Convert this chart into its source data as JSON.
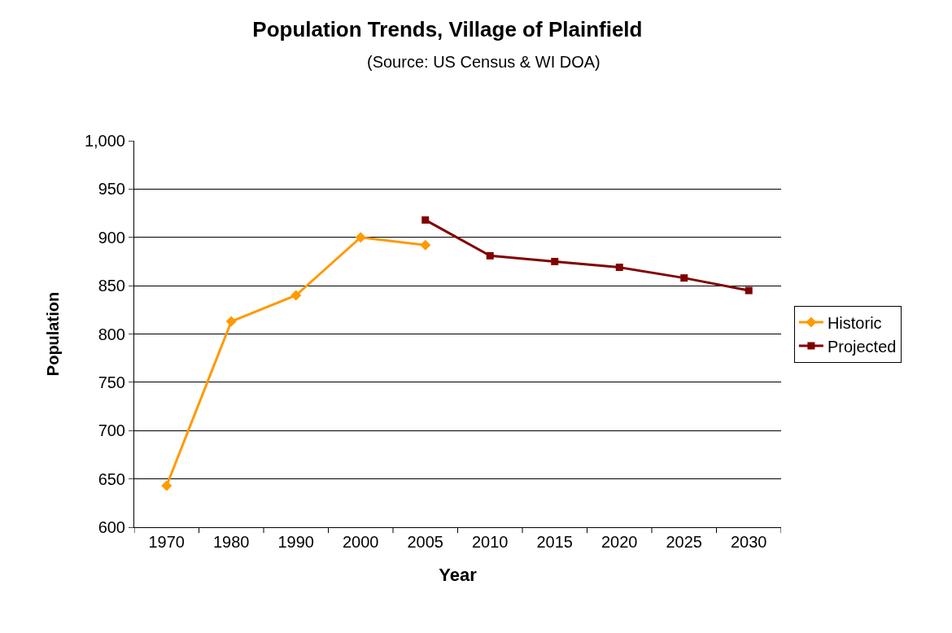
{
  "chart_data": {
    "type": "line",
    "title": "Population Trends, Village of Plainfield",
    "subtitle": "(Source: US Census & WI DOA)",
    "xlabel": "Year",
    "ylabel": "Population",
    "categories": [
      "1970",
      "1980",
      "1990",
      "2000",
      "2005",
      "2010",
      "2015",
      "2020",
      "2025",
      "2030"
    ],
    "series": [
      {
        "name": "Historic",
        "color": "#ff9900",
        "marker": "diamond",
        "values": [
          643,
          813,
          840,
          900,
          892,
          null,
          null,
          null,
          null,
          null
        ]
      },
      {
        "name": "Projected",
        "color": "#800000",
        "marker": "square",
        "values": [
          null,
          null,
          null,
          null,
          918,
          881,
          875,
          869,
          858,
          845
        ]
      }
    ],
    "ylim": [
      600,
      1000
    ],
    "yticks": [
      600,
      650,
      700,
      750,
      800,
      850,
      900,
      950,
      {
        "value": 1000,
        "label": "1,000"
      }
    ],
    "grid": "y",
    "legend": "right"
  }
}
